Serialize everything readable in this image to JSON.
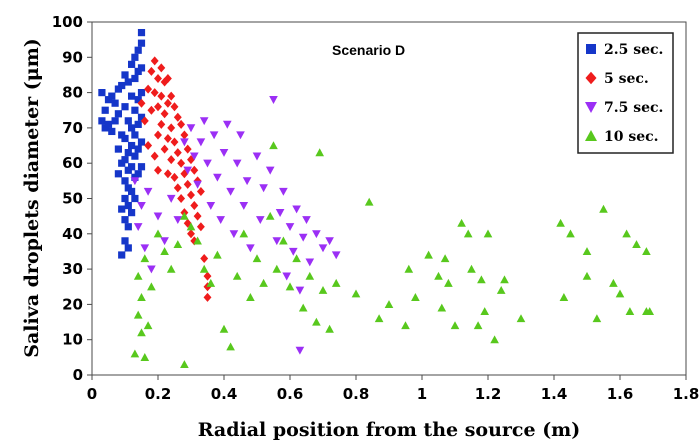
{
  "chart_data": {
    "type": "scatter",
    "title": "",
    "annotation": "Scenario D",
    "xlabel": "Radial position from the source (m)",
    "ylabel": "Saliva droplets diameter (μm)",
    "xlim": [
      0,
      1.8
    ],
    "ylim": [
      0,
      100
    ],
    "x_ticks": [
      "0",
      "0.2",
      "0.4",
      "0.6",
      "0.8",
      "1",
      "1.2",
      "1.4",
      "1.6",
      "1.8"
    ],
    "y_ticks": [
      "0",
      "10",
      "20",
      "30",
      "40",
      "50",
      "60",
      "70",
      "80",
      "90",
      "100"
    ],
    "grid": false,
    "legend_position": "top-right",
    "series": [
      {
        "name": "2.5 sec.",
        "marker": "square",
        "color": "#1536c9",
        "points": [
          [
            0.03,
            80
          ],
          [
            0.03,
            72
          ],
          [
            0.04,
            75
          ],
          [
            0.04,
            70
          ],
          [
            0.05,
            78
          ],
          [
            0.05,
            71
          ],
          [
            0.06,
            79
          ],
          [
            0.06,
            69
          ],
          [
            0.07,
            77
          ],
          [
            0.07,
            72
          ],
          [
            0.08,
            81
          ],
          [
            0.08,
            74
          ],
          [
            0.08,
            64
          ],
          [
            0.08,
            57
          ],
          [
            0.09,
            82
          ],
          [
            0.09,
            68
          ],
          [
            0.09,
            60
          ],
          [
            0.09,
            47
          ],
          [
            0.09,
            34
          ],
          [
            0.1,
            85
          ],
          [
            0.1,
            76
          ],
          [
            0.1,
            67
          ],
          [
            0.1,
            61
          ],
          [
            0.1,
            55
          ],
          [
            0.1,
            50
          ],
          [
            0.1,
            44
          ],
          [
            0.1,
            38
          ],
          [
            0.11,
            83
          ],
          [
            0.11,
            72
          ],
          [
            0.11,
            63
          ],
          [
            0.11,
            58
          ],
          [
            0.11,
            53
          ],
          [
            0.11,
            48
          ],
          [
            0.11,
            42
          ],
          [
            0.11,
            36
          ],
          [
            0.12,
            88
          ],
          [
            0.12,
            79
          ],
          [
            0.12,
            70
          ],
          [
            0.12,
            65
          ],
          [
            0.12,
            59
          ],
          [
            0.12,
            52
          ],
          [
            0.12,
            46
          ],
          [
            0.13,
            90
          ],
          [
            0.13,
            84
          ],
          [
            0.13,
            75
          ],
          [
            0.13,
            68
          ],
          [
            0.13,
            62
          ],
          [
            0.13,
            56
          ],
          [
            0.13,
            50
          ],
          [
            0.14,
            92
          ],
          [
            0.14,
            86
          ],
          [
            0.14,
            78
          ],
          [
            0.14,
            71
          ],
          [
            0.14,
            64
          ],
          [
            0.14,
            57
          ],
          [
            0.15,
            97
          ],
          [
            0.15,
            94
          ],
          [
            0.15,
            87
          ],
          [
            0.15,
            80
          ],
          [
            0.15,
            73
          ],
          [
            0.15,
            66
          ],
          [
            0.15,
            59
          ]
        ]
      },
      {
        "name": "5 sec.",
        "marker": "diamond",
        "color": "#ef1c1c",
        "points": [
          [
            0.15,
            77
          ],
          [
            0.16,
            72
          ],
          [
            0.17,
            81
          ],
          [
            0.17,
            65
          ],
          [
            0.18,
            86
          ],
          [
            0.18,
            75
          ],
          [
            0.19,
            89
          ],
          [
            0.19,
            80
          ],
          [
            0.19,
            62
          ],
          [
            0.2,
            84
          ],
          [
            0.2,
            76
          ],
          [
            0.2,
            68
          ],
          [
            0.2,
            58
          ],
          [
            0.21,
            87
          ],
          [
            0.21,
            79
          ],
          [
            0.21,
            71
          ],
          [
            0.22,
            83
          ],
          [
            0.22,
            74
          ],
          [
            0.22,
            64
          ],
          [
            0.23,
            84
          ],
          [
            0.23,
            77
          ],
          [
            0.23,
            67
          ],
          [
            0.23,
            57
          ],
          [
            0.24,
            79
          ],
          [
            0.24,
            70
          ],
          [
            0.24,
            61
          ],
          [
            0.25,
            76
          ],
          [
            0.25,
            66
          ],
          [
            0.25,
            56
          ],
          [
            0.26,
            73
          ],
          [
            0.26,
            63
          ],
          [
            0.26,
            53
          ],
          [
            0.27,
            71
          ],
          [
            0.27,
            60
          ],
          [
            0.27,
            50
          ],
          [
            0.28,
            68
          ],
          [
            0.28,
            57
          ],
          [
            0.28,
            46
          ],
          [
            0.29,
            64
          ],
          [
            0.29,
            54
          ],
          [
            0.29,
            43
          ],
          [
            0.3,
            61
          ],
          [
            0.3,
            51
          ],
          [
            0.3,
            40
          ],
          [
            0.31,
            58
          ],
          [
            0.31,
            48
          ],
          [
            0.31,
            38
          ],
          [
            0.32,
            55
          ],
          [
            0.32,
            45
          ],
          [
            0.33,
            52
          ],
          [
            0.33,
            42
          ],
          [
            0.34,
            33
          ],
          [
            0.35,
            28
          ],
          [
            0.35,
            22
          ],
          [
            0.35,
            25
          ]
        ]
      },
      {
        "name": "7.5 sec.",
        "marker": "triangle-down",
        "color": "#9b2ff5",
        "points": [
          [
            0.13,
            55
          ],
          [
            0.14,
            42
          ],
          [
            0.15,
            48
          ],
          [
            0.16,
            36
          ],
          [
            0.17,
            52
          ],
          [
            0.18,
            30
          ],
          [
            0.2,
            45
          ],
          [
            0.22,
            38
          ],
          [
            0.24,
            50
          ],
          [
            0.26,
            44
          ],
          [
            0.28,
            66
          ],
          [
            0.29,
            58
          ],
          [
            0.3,
            70
          ],
          [
            0.31,
            62
          ],
          [
            0.32,
            54
          ],
          [
            0.33,
            66
          ],
          [
            0.34,
            72
          ],
          [
            0.35,
            60
          ],
          [
            0.36,
            48
          ],
          [
            0.37,
            68
          ],
          [
            0.38,
            56
          ],
          [
            0.39,
            44
          ],
          [
            0.4,
            63
          ],
          [
            0.41,
            71
          ],
          [
            0.42,
            52
          ],
          [
            0.43,
            40
          ],
          [
            0.44,
            60
          ],
          [
            0.45,
            68
          ],
          [
            0.46,
            48
          ],
          [
            0.47,
            55
          ],
          [
            0.48,
            36
          ],
          [
            0.5,
            62
          ],
          [
            0.51,
            44
          ],
          [
            0.52,
            53
          ],
          [
            0.54,
            58
          ],
          [
            0.55,
            78
          ],
          [
            0.56,
            38
          ],
          [
            0.57,
            46
          ],
          [
            0.58,
            52
          ],
          [
            0.59,
            28
          ],
          [
            0.6,
            42
          ],
          [
            0.61,
            35
          ],
          [
            0.62,
            47
          ],
          [
            0.63,
            24
          ],
          [
            0.64,
            39
          ],
          [
            0.65,
            44
          ],
          [
            0.66,
            32
          ],
          [
            0.68,
            40
          ],
          [
            0.7,
            36
          ],
          [
            0.72,
            38
          ],
          [
            0.74,
            34
          ],
          [
            0.63,
            7
          ]
        ]
      },
      {
        "name": "10 sec.",
        "marker": "triangle-up",
        "color": "#58c81d",
        "points": [
          [
            0.13,
            6
          ],
          [
            0.14,
            17
          ],
          [
            0.14,
            28
          ],
          [
            0.15,
            12
          ],
          [
            0.15,
            22
          ],
          [
            0.16,
            5
          ],
          [
            0.16,
            33
          ],
          [
            0.17,
            14
          ],
          [
            0.18,
            25
          ],
          [
            0.2,
            40
          ],
          [
            0.22,
            35
          ],
          [
            0.24,
            30
          ],
          [
            0.26,
            37
          ],
          [
            0.28,
            3
          ],
          [
            0.28,
            45
          ],
          [
            0.3,
            42
          ],
          [
            0.32,
            38
          ],
          [
            0.34,
            30
          ],
          [
            0.36,
            26
          ],
          [
            0.38,
            34
          ],
          [
            0.4,
            13
          ],
          [
            0.42,
            8
          ],
          [
            0.44,
            28
          ],
          [
            0.46,
            40
          ],
          [
            0.48,
            22
          ],
          [
            0.5,
            33
          ],
          [
            0.52,
            26
          ],
          [
            0.54,
            45
          ],
          [
            0.55,
            65
          ],
          [
            0.56,
            30
          ],
          [
            0.58,
            38
          ],
          [
            0.6,
            25
          ],
          [
            0.62,
            33
          ],
          [
            0.64,
            19
          ],
          [
            0.66,
            28
          ],
          [
            0.68,
            15
          ],
          [
            0.69,
            63
          ],
          [
            0.7,
            24
          ],
          [
            0.72,
            13
          ],
          [
            0.74,
            26
          ],
          [
            0.8,
            23
          ],
          [
            0.84,
            49
          ],
          [
            0.87,
            16
          ],
          [
            0.9,
            20
          ],
          [
            0.95,
            14
          ],
          [
            0.96,
            30
          ],
          [
            0.98,
            22
          ],
          [
            1.02,
            34
          ],
          [
            1.05,
            28
          ],
          [
            1.06,
            19
          ],
          [
            1.07,
            33
          ],
          [
            1.08,
            26
          ],
          [
            1.1,
            14
          ],
          [
            1.12,
            43
          ],
          [
            1.14,
            40
          ],
          [
            1.15,
            30
          ],
          [
            1.17,
            14
          ],
          [
            1.18,
            27
          ],
          [
            1.19,
            18
          ],
          [
            1.2,
            40
          ],
          [
            1.22,
            10
          ],
          [
            1.24,
            24
          ],
          [
            1.25,
            27
          ],
          [
            1.3,
            16
          ],
          [
            1.42,
            43
          ],
          [
            1.43,
            22
          ],
          [
            1.45,
            40
          ],
          [
            1.5,
            35
          ],
          [
            1.5,
            28
          ],
          [
            1.53,
            16
          ],
          [
            1.55,
            47
          ],
          [
            1.58,
            26
          ],
          [
            1.6,
            23
          ],
          [
            1.62,
            40
          ],
          [
            1.63,
            18
          ],
          [
            1.65,
            37
          ],
          [
            1.68,
            18
          ],
          [
            1.68,
            35
          ],
          [
            1.69,
            18
          ]
        ]
      }
    ]
  }
}
